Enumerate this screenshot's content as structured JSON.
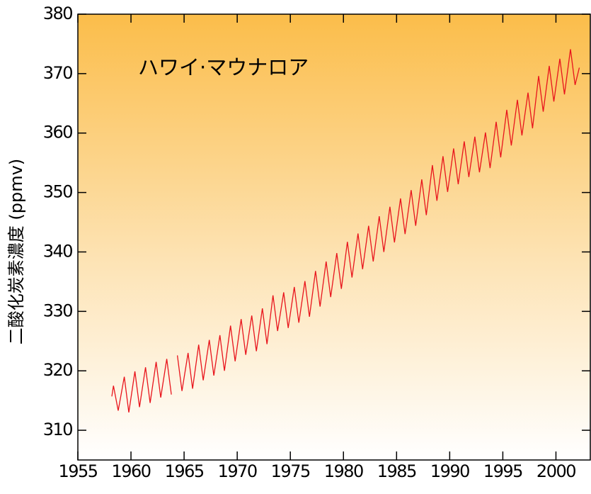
{
  "chart_data": {
    "type": "line",
    "annotation": "ハワイ·マウナロア",
    "y_label": "二酸化炭素濃度 (ppmv)",
    "color": "#e8141c",
    "x": [
      1958.2,
      1958.35,
      1958.8,
      1959.37,
      1959.8,
      1960.37,
      1960.8,
      1961.37,
      1961.8,
      1962.37,
      1962.8,
      1963.37,
      1963.8,
      1964.0,
      1964.37,
      1964.8,
      1965.37,
      1965.8,
      1966.37,
      1966.8,
      1967.37,
      1967.8,
      1968.37,
      1968.8,
      1969.37,
      1969.8,
      1970.37,
      1970.8,
      1971.37,
      1971.8,
      1972.37,
      1972.8,
      1973.37,
      1973.8,
      1974.37,
      1974.8,
      1975.37,
      1975.8,
      1976.37,
      1976.8,
      1977.37,
      1977.8,
      1978.37,
      1978.8,
      1979.37,
      1979.8,
      1980.37,
      1980.8,
      1981.37,
      1981.8,
      1982.37,
      1982.8,
      1983.37,
      1983.8,
      1984.37,
      1984.8,
      1985.37,
      1985.8,
      1986.37,
      1986.8,
      1987.37,
      1987.8,
      1988.37,
      1988.8,
      1989.37,
      1989.8,
      1990.37,
      1990.8,
      1991.37,
      1991.8,
      1992.37,
      1992.8,
      1993.37,
      1993.8,
      1994.37,
      1994.8,
      1995.37,
      1995.8,
      1996.37,
      1996.8,
      1997.37,
      1997.8,
      1998.37,
      1998.8,
      1999.37,
      1999.8,
      2000.37,
      2000.8,
      2001.37,
      2001.8,
      2002.2
    ],
    "values": [
      315.7,
      317.5,
      313.3,
      319.0,
      313.0,
      319.9,
      313.9,
      320.6,
      314.6,
      321.5,
      315.5,
      322.0,
      316.0,
      null,
      322.6,
      316.6,
      323.0,
      317.0,
      324.4,
      318.4,
      325.2,
      319.2,
      326.0,
      320.0,
      327.6,
      321.6,
      328.7,
      322.7,
      329.3,
      323.3,
      330.5,
      324.5,
      332.7,
      326.7,
      333.2,
      327.2,
      334.1,
      328.1,
      335.1,
      329.1,
      336.8,
      330.8,
      338.4,
      332.4,
      339.8,
      333.8,
      341.7,
      335.7,
      343.1,
      337.1,
      344.4,
      338.4,
      346.0,
      340.0,
      347.6,
      341.6,
      349.0,
      343.0,
      350.4,
      344.4,
      352.2,
      346.2,
      354.6,
      348.6,
      356.1,
      350.1,
      357.4,
      351.4,
      358.6,
      352.6,
      359.4,
      353.4,
      360.1,
      354.1,
      361.9,
      355.9,
      363.9,
      357.9,
      365.6,
      359.6,
      366.8,
      360.8,
      369.6,
      363.6,
      371.3,
      365.3,
      372.5,
      366.5,
      374.1,
      368.1,
      371.0
    ],
    "xlim": [
      1955,
      2003.3
    ],
    "xticks": [
      1955,
      1960,
      1965,
      1970,
      1975,
      1980,
      1985,
      1990,
      1995,
      2000
    ],
    "ylim": [
      305,
      380
    ],
    "yticks": [
      310,
      320,
      330,
      340,
      350,
      360,
      370,
      380
    ]
  }
}
